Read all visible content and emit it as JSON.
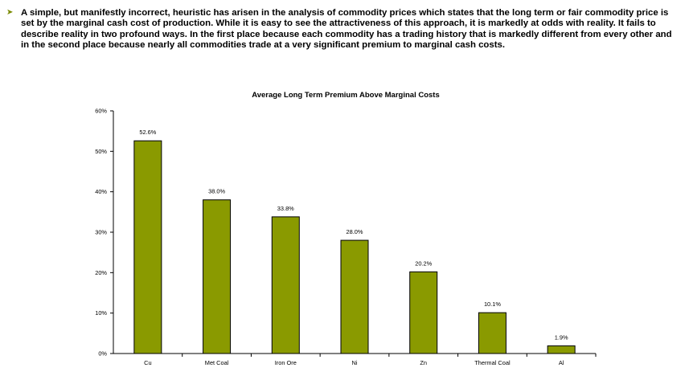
{
  "bullet": {
    "text": "A simple, but manifestly incorrect, heuristic has arisen in the analysis of commodity prices which states that the long term or fair commodity price is set by the marginal cash cost of production. While it is easy to see the attractiveness of this approach, it is markedly at odds with reality. It fails to describe reality in two profound ways. In the first place because each commodity has a trading history that is markedly different from every other and in the second place because nearly all commodities trade at a very significant premium to marginal cash costs.",
    "marker_icon": "arrow-bullet-icon"
  },
  "chart_data": {
    "type": "bar",
    "title": "Average Long Term Premium Above Marginal Costs",
    "categories": [
      "Cu",
      "Met Coal",
      "Iron Ore",
      "Ni",
      "Zn",
      "Thermal Coal",
      "Al"
    ],
    "values": [
      52.6,
      38.0,
      33.8,
      28.0,
      20.2,
      10.1,
      1.9
    ],
    "data_labels": [
      "52.6%",
      "38.0%",
      "33.8%",
      "28.0%",
      "20.2%",
      "10.1%",
      "1.9%"
    ],
    "yticks": [
      0,
      10,
      20,
      30,
      40,
      50,
      60
    ],
    "ytick_labels": [
      "0%",
      "10%",
      "20%",
      "30%",
      "40%",
      "50%",
      "60%"
    ],
    "ylim": [
      0,
      60
    ],
    "xlabel": "",
    "ylabel": "",
    "grid": false,
    "bar_color": "#8a9a00",
    "bar_edge_color": "#000000"
  }
}
